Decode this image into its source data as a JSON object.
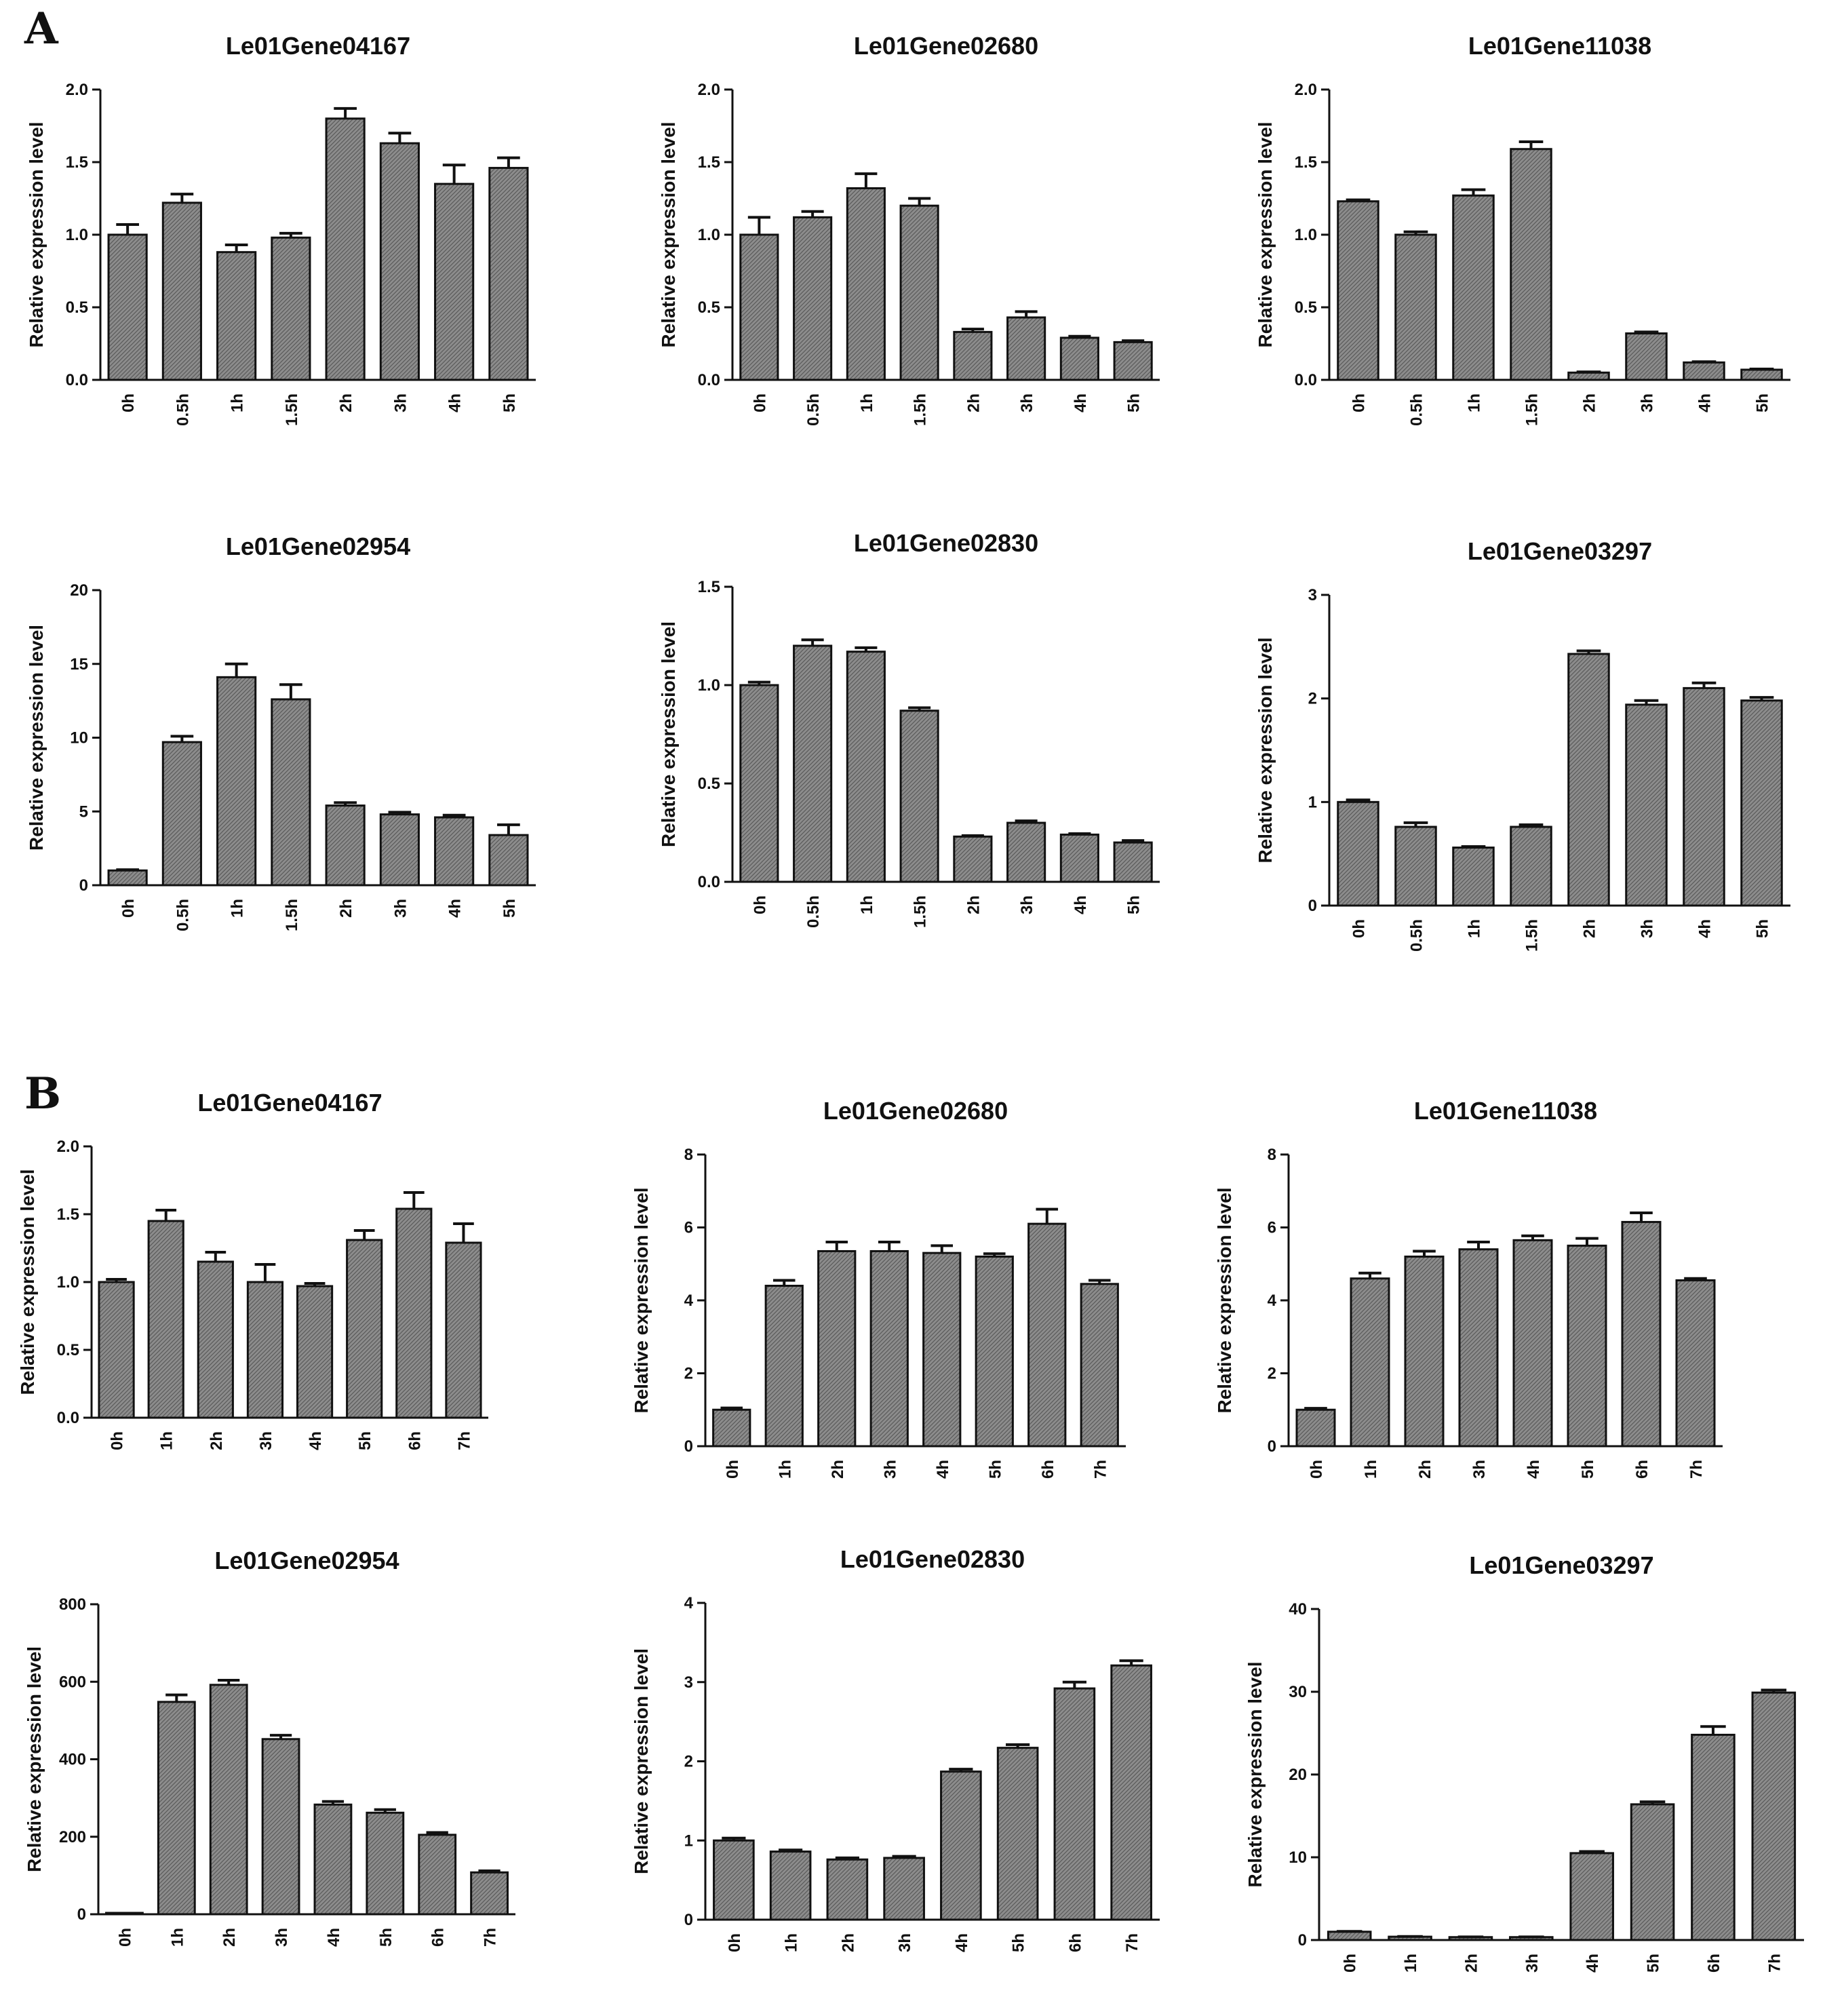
{
  "panels": [
    {
      "letter": "A"
    },
    {
      "letter": "B"
    }
  ],
  "chart_data": [
    {
      "type": "bar",
      "panel": "A",
      "title": "Le01Gene04167",
      "ylabel": "Relative expression level",
      "xlabel": "",
      "categories": [
        "0h",
        "0.5h",
        "1h",
        "1.5h",
        "2h",
        "3h",
        "4h",
        "5h"
      ],
      "values": [
        1.0,
        1.22,
        0.88,
        0.98,
        1.8,
        1.63,
        1.35,
        1.46
      ],
      "errors": [
        0.07,
        0.06,
        0.05,
        0.03,
        0.07,
        0.07,
        0.13,
        0.07
      ],
      "ylim": [
        0,
        2.0
      ],
      "yticks": [
        "0.0",
        "0.5",
        "1.0",
        "1.5",
        "2.0"
      ]
    },
    {
      "type": "bar",
      "panel": "A",
      "title": "Le01Gene02680",
      "ylabel": "Relative expression level",
      "xlabel": "",
      "categories": [
        "0h",
        "0.5h",
        "1h",
        "1.5h",
        "2h",
        "3h",
        "4h",
        "5h"
      ],
      "values": [
        1.0,
        1.12,
        1.32,
        1.2,
        0.33,
        0.43,
        0.29,
        0.26
      ],
      "errors": [
        0.12,
        0.04,
        0.1,
        0.05,
        0.02,
        0.04,
        0.01,
        0.01
      ],
      "ylim": [
        0,
        2.0
      ],
      "yticks": [
        "0.0",
        "0.5",
        "1.0",
        "1.5",
        "2.0"
      ]
    },
    {
      "type": "bar",
      "panel": "A",
      "title": "Le01Gene11038",
      "ylabel": "Relative expression level",
      "xlabel": "",
      "categories": [
        "0h",
        "0.5h",
        "1h",
        "1.5h",
        "2h",
        "3h",
        "4h",
        "5h"
      ],
      "values": [
        1.23,
        1.0,
        1.27,
        1.59,
        0.05,
        0.32,
        0.12,
        0.07
      ],
      "errors": [
        0.01,
        0.02,
        0.04,
        0.05,
        0.005,
        0.01,
        0.005,
        0.005
      ],
      "ylim": [
        0,
        2.0
      ],
      "yticks": [
        "0.0",
        "0.5",
        "1.0",
        "1.5",
        "2.0"
      ]
    },
    {
      "type": "bar",
      "panel": "A",
      "title": "Le01Gene02954",
      "ylabel": "Relative expression level",
      "xlabel": "",
      "categories": [
        "0h",
        "0.5h",
        "1h",
        "1.5h",
        "2h",
        "3h",
        "4h",
        "5h"
      ],
      "values": [
        1.0,
        9.7,
        14.1,
        12.6,
        5.4,
        4.8,
        4.6,
        3.4
      ],
      "errors": [
        0.05,
        0.4,
        0.9,
        1.0,
        0.2,
        0.15,
        0.15,
        0.7
      ],
      "ylim": [
        0,
        20
      ],
      "yticks": [
        "0",
        "5",
        "10",
        "15",
        "20"
      ]
    },
    {
      "type": "bar",
      "panel": "A",
      "title": "Le01Gene02830",
      "ylabel": "Relative expression level",
      "xlabel": "",
      "categories": [
        "0h",
        "0.5h",
        "1h",
        "1.5h",
        "2h",
        "3h",
        "4h",
        "5h"
      ],
      "values": [
        1.0,
        1.2,
        1.17,
        0.87,
        0.23,
        0.3,
        0.24,
        0.2
      ],
      "errors": [
        0.015,
        0.03,
        0.02,
        0.015,
        0.005,
        0.01,
        0.005,
        0.01
      ],
      "ylim": [
        0,
        1.5
      ],
      "yticks": [
        "0.0",
        "0.5",
        "1.0",
        "1.5"
      ]
    },
    {
      "type": "bar",
      "panel": "A",
      "title": "Le01Gene03297",
      "ylabel": "Relative expression level",
      "xlabel": "",
      "categories": [
        "0h",
        "0.5h",
        "1h",
        "1.5h",
        "2h",
        "3h",
        "4h",
        "5h"
      ],
      "values": [
        1.0,
        0.76,
        0.56,
        0.76,
        2.43,
        1.94,
        2.1,
        1.98
      ],
      "errors": [
        0.02,
        0.04,
        0.01,
        0.02,
        0.03,
        0.04,
        0.05,
        0.03
      ],
      "ylim": [
        0,
        3
      ],
      "yticks": [
        "0",
        "1",
        "2",
        "3"
      ]
    },
    {
      "type": "bar",
      "panel": "B",
      "title": "Le01Gene04167",
      "ylabel": "Relative expression level",
      "xlabel": "",
      "categories": [
        "0h",
        "1h",
        "2h",
        "3h",
        "4h",
        "5h",
        "6h",
        "7h"
      ],
      "values": [
        1.0,
        1.45,
        1.15,
        1.0,
        0.97,
        1.31,
        1.54,
        1.29
      ],
      "errors": [
        0.02,
        0.08,
        0.07,
        0.13,
        0.02,
        0.07,
        0.12,
        0.14
      ],
      "ylim": [
        0,
        2.0
      ],
      "yticks": [
        "0.0",
        "0.5",
        "1.0",
        "1.5",
        "2.0"
      ]
    },
    {
      "type": "bar",
      "panel": "B",
      "title": "Le01Gene02680",
      "ylabel": "Relative expression level",
      "xlabel": "",
      "categories": [
        "0h",
        "1h",
        "2h",
        "3h",
        "4h",
        "5h",
        "6h",
        "7h"
      ],
      "values": [
        1.0,
        4.4,
        5.35,
        5.35,
        5.3,
        5.2,
        6.1,
        4.45
      ],
      "errors": [
        0.05,
        0.15,
        0.25,
        0.25,
        0.2,
        0.08,
        0.4,
        0.1
      ],
      "ylim": [
        0,
        8
      ],
      "yticks": [
        "0",
        "2",
        "4",
        "6",
        "8"
      ]
    },
    {
      "type": "bar",
      "panel": "B",
      "title": "Le01Gene11038",
      "ylabel": "Relative expression level",
      "xlabel": "",
      "categories": [
        "0h",
        "1h",
        "2h",
        "3h",
        "4h",
        "5h",
        "6h",
        "7h"
      ],
      "values": [
        1.0,
        4.6,
        5.2,
        5.4,
        5.65,
        5.5,
        6.15,
        4.55
      ],
      "errors": [
        0.04,
        0.15,
        0.15,
        0.2,
        0.12,
        0.2,
        0.25,
        0.05
      ],
      "ylim": [
        0,
        8
      ],
      "yticks": [
        "0",
        "2",
        "4",
        "6",
        "8"
      ]
    },
    {
      "type": "bar",
      "panel": "B",
      "title": "Le01Gene02954",
      "ylabel": "Relative expression level",
      "xlabel": "",
      "categories": [
        "0h",
        "1h",
        "2h",
        "3h",
        "4h",
        "5h",
        "6h",
        "7h"
      ],
      "values": [
        1,
        548,
        592,
        452,
        283,
        262,
        205,
        108
      ],
      "errors": [
        1,
        18,
        12,
        10,
        8,
        8,
        6,
        4
      ],
      "ylim": [
        0,
        800
      ],
      "yticks": [
        "0",
        "200",
        "400",
        "600",
        "800"
      ]
    },
    {
      "type": "bar",
      "panel": "B",
      "title": "Le01Gene02830",
      "ylabel": "Relative expression level",
      "xlabel": "",
      "categories": [
        "0h",
        "1h",
        "2h",
        "3h",
        "4h",
        "5h",
        "6h",
        "7h"
      ],
      "values": [
        1.0,
        0.86,
        0.76,
        0.78,
        1.87,
        2.17,
        2.92,
        3.21
      ],
      "errors": [
        0.03,
        0.02,
        0.02,
        0.02,
        0.03,
        0.04,
        0.08,
        0.06
      ],
      "ylim": [
        0,
        4
      ],
      "yticks": [
        "0",
        "1",
        "2",
        "3",
        "4"
      ]
    },
    {
      "type": "bar",
      "panel": "B",
      "title": "Le01Gene03297",
      "ylabel": "Relative expression level",
      "xlabel": "",
      "categories": [
        "0h",
        "1h",
        "2h",
        "3h",
        "4h",
        "5h",
        "6h",
        "7h"
      ],
      "values": [
        1.0,
        0.4,
        0.35,
        0.35,
        10.5,
        16.4,
        24.8,
        29.9
      ],
      "errors": [
        0.05,
        0.03,
        0.03,
        0.03,
        0.2,
        0.3,
        1.0,
        0.3
      ],
      "ylim": [
        0,
        40
      ],
      "yticks": [
        "0",
        "10",
        "20",
        "30",
        "40"
      ]
    }
  ],
  "colors": {
    "bar_fill": "#8c8c8c",
    "bar_hatch": "#5a5a5a",
    "ink": "#111111",
    "background": "#ffffff"
  }
}
